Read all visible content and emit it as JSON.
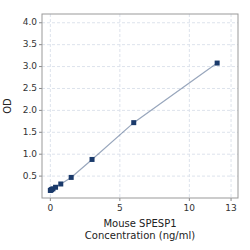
{
  "chart_data": {
    "type": "line",
    "x": [
      0.0,
      0.047,
      0.094,
      0.188,
      0.375,
      0.75,
      1.5,
      3.0,
      6.0,
      12.0
    ],
    "values": [
      0.172,
      0.181,
      0.195,
      0.21,
      0.245,
      0.32,
      0.47,
      0.88,
      1.72,
      3.08
    ],
    "color": "#1a3a6b",
    "marker": "square",
    "x_label": "Mouse SPESP1\nConcentration (ng/ml)",
    "y_label": "OD",
    "xlim": [
      -0.6,
      13.5
    ],
    "ylim": [
      0,
      4.2
    ],
    "xticks": [
      0,
      5,
      10,
      13
    ],
    "yticks": [
      0.5,
      {
        "value": 1.0,
        "label": "1.0"
      },
      1.5,
      {
        "value": 2.0,
        "label": "2.0"
      },
      2.5,
      {
        "value": 3.0,
        "label": "3.0"
      },
      3.5,
      {
        "value": 4.0,
        "label": "4.0"
      }
    ],
    "grid": true
  }
}
